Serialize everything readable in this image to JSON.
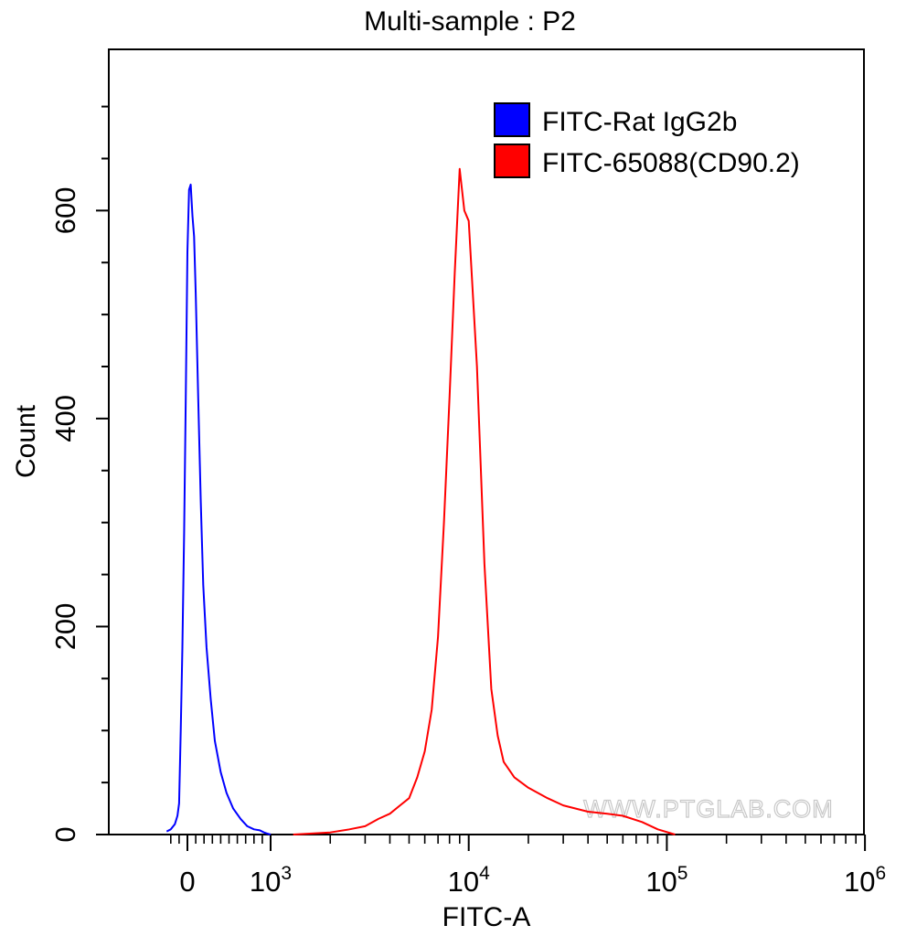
{
  "chart_data": {
    "type": "line",
    "title": "Multi-sample : P2",
    "xlabel": "FITC-A",
    "ylabel": "Count",
    "x_scale": "biexponential",
    "xlim": [
      -250,
      1000000
    ],
    "ylim": [
      0,
      755
    ],
    "y_ticks": [
      0,
      200,
      400,
      600
    ],
    "x_ticks": [
      {
        "value": 0,
        "label": "0",
        "exp": ""
      },
      {
        "value": 1000,
        "label": "10",
        "exp": "3"
      },
      {
        "value": 10000,
        "label": "10",
        "exp": "4"
      },
      {
        "value": 100000,
        "label": "10",
        "exp": "5"
      },
      {
        "value": 1000000,
        "label": "10",
        "exp": "6"
      }
    ],
    "legend_position": "top-right",
    "watermark": "WWW.PTGLAB.COM",
    "series": [
      {
        "name": "FITC-Rat IgG2b",
        "color": "#0000ff",
        "x": [
          -250,
          -200,
          -150,
          -120,
          -100,
          -80,
          -60,
          -40,
          -20,
          0,
          20,
          40,
          60,
          80,
          100,
          130,
          160,
          190,
          230,
          280,
          330,
          400,
          470,
          550,
          640,
          720,
          800,
          870,
          920,
          960,
          1000
        ],
        "y": [
          3,
          5,
          10,
          18,
          30,
          100,
          180,
          290,
          420,
          560,
          620,
          625,
          595,
          575,
          520,
          420,
          320,
          240,
          180,
          130,
          90,
          60,
          40,
          25,
          15,
          8,
          5,
          4,
          2,
          1,
          0
        ]
      },
      {
        "name": "FITC-65088(CD90.2)",
        "color": "#ff0000",
        "x": [
          1300,
          2000,
          2500,
          3000,
          3500,
          4000,
          4500,
          5000,
          5500,
          6000,
          6500,
          7000,
          7500,
          8000,
          8500,
          9000,
          9500,
          10000,
          11000,
          12000,
          13000,
          14000,
          15000,
          17000,
          20000,
          25000,
          30000,
          40000,
          50000,
          60000,
          75000,
          90000,
          110000
        ],
        "y": [
          0,
          2,
          5,
          8,
          15,
          20,
          28,
          35,
          55,
          80,
          120,
          190,
          300,
          420,
          540,
          640,
          600,
          590,
          450,
          260,
          140,
          95,
          70,
          55,
          45,
          35,
          28,
          22,
          20,
          18,
          12,
          5,
          0
        ]
      }
    ]
  }
}
